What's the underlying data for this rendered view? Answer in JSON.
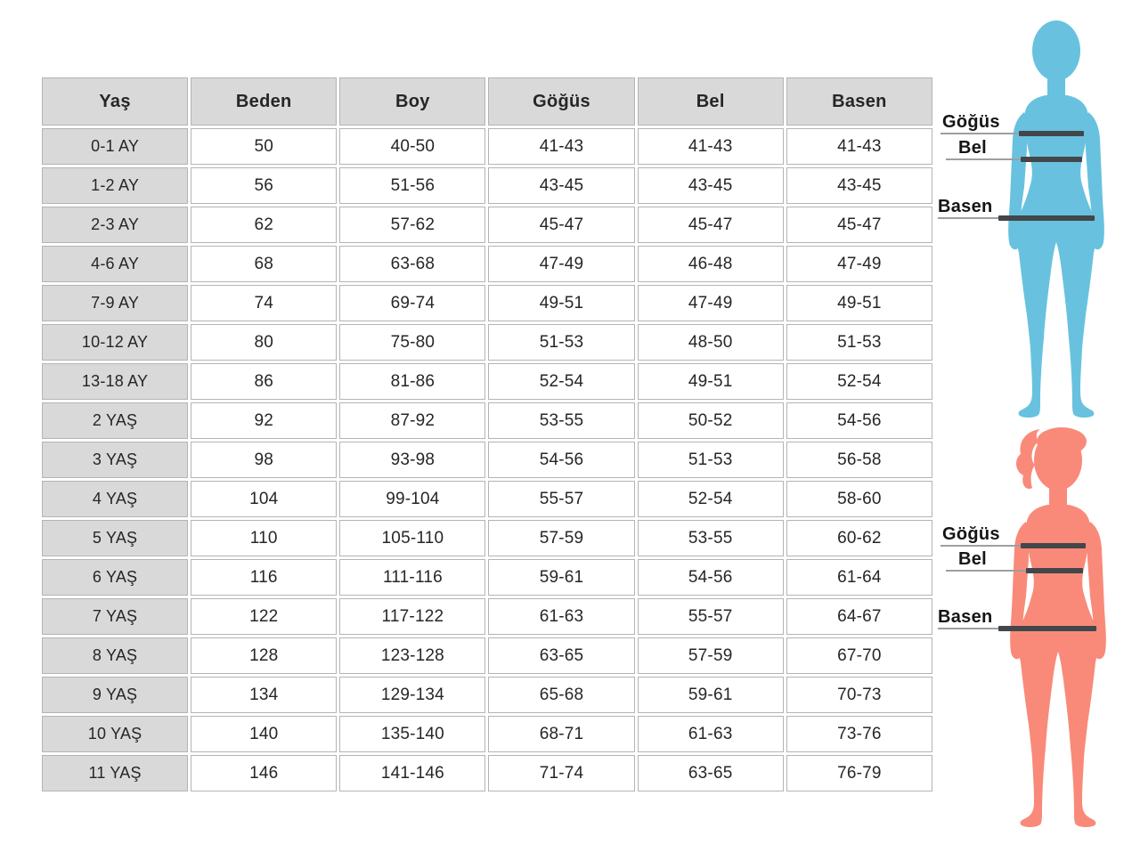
{
  "table": {
    "headers": [
      "Yaş",
      "Beden",
      "Boy",
      "Göğüs",
      "Bel",
      "Basen"
    ],
    "rows": [
      [
        "0-1 AY",
        "50",
        "40-50",
        "41-43",
        "41-43",
        "41-43"
      ],
      [
        "1-2 AY",
        "56",
        "51-56",
        "43-45",
        "43-45",
        "43-45"
      ],
      [
        "2-3 AY",
        "62",
        "57-62",
        "45-47",
        "45-47",
        "45-47"
      ],
      [
        "4-6 AY",
        "68",
        "63-68",
        "47-49",
        "46-48",
        "47-49"
      ],
      [
        "7-9 AY",
        "74",
        "69-74",
        "49-51",
        "47-49",
        "49-51"
      ],
      [
        "10-12 AY",
        "80",
        "75-80",
        "51-53",
        "48-50",
        "51-53"
      ],
      [
        "13-18 AY",
        "86",
        "81-86",
        "52-54",
        "49-51",
        "52-54"
      ],
      [
        "2 YAŞ",
        "92",
        "87-92",
        "53-55",
        "50-52",
        "54-56"
      ],
      [
        "3 YAŞ",
        "98",
        "93-98",
        "54-56",
        "51-53",
        "56-58"
      ],
      [
        "4 YAŞ",
        "104",
        "99-104",
        "55-57",
        "52-54",
        "58-60"
      ],
      [
        "5 YAŞ",
        "110",
        "105-110",
        "57-59",
        "53-55",
        "60-62"
      ],
      [
        "6 YAŞ",
        "116",
        "111-116",
        "59-61",
        "54-56",
        "61-64"
      ],
      [
        "7 YAŞ",
        "122",
        "117-122",
        "61-63",
        "55-57",
        "64-67"
      ],
      [
        "8 YAŞ",
        "128",
        "123-128",
        "63-65",
        "57-59",
        "67-70"
      ],
      [
        "9 YAŞ",
        "134",
        "129-134",
        "65-68",
        "59-61",
        "70-73"
      ],
      [
        "10 YAŞ",
        "140",
        "135-140",
        "68-71",
        "61-63",
        "73-76"
      ],
      [
        "11 YAŞ",
        "146",
        "141-146",
        "71-74",
        "63-65",
        "76-79"
      ]
    ]
  },
  "figures": {
    "top": {
      "labels": [
        "Göğüs",
        "Bel",
        "Basen"
      ]
    },
    "bottom": {
      "labels": [
        "Göğüs",
        "Bel",
        "Basen"
      ]
    }
  },
  "colors": {
    "header_bg": "#d9d9d9",
    "row_label_bg": "#d9d9d9",
    "cell_border": "#b4b4b4",
    "adult_silhouette": "#68c2df",
    "child_silhouette": "#f98a79",
    "measure_bar": "#43464a",
    "pointer_line": "#9b9fa1",
    "text": "#262626"
  },
  "chart_data": {
    "type": "table",
    "title": "",
    "columns": [
      "Yaş",
      "Beden",
      "Boy",
      "Göğüs",
      "Bel",
      "Basen"
    ],
    "rows": [
      [
        "0-1 AY",
        "50",
        "40-50",
        "41-43",
        "41-43",
        "41-43"
      ],
      [
        "1-2 AY",
        "56",
        "51-56",
        "43-45",
        "43-45",
        "43-45"
      ],
      [
        "2-3 AY",
        "62",
        "57-62",
        "45-47",
        "45-47",
        "45-47"
      ],
      [
        "4-6 AY",
        "68",
        "63-68",
        "47-49",
        "46-48",
        "47-49"
      ],
      [
        "7-9 AY",
        "74",
        "69-74",
        "49-51",
        "47-49",
        "49-51"
      ],
      [
        "10-12 AY",
        "80",
        "75-80",
        "51-53",
        "48-50",
        "51-53"
      ],
      [
        "13-18 AY",
        "86",
        "81-86",
        "52-54",
        "49-51",
        "52-54"
      ],
      [
        "2 YAŞ",
        "92",
        "87-92",
        "53-55",
        "50-52",
        "54-56"
      ],
      [
        "3 YAŞ",
        "98",
        "93-98",
        "54-56",
        "51-53",
        "56-58"
      ],
      [
        "4 YAŞ",
        "104",
        "99-104",
        "55-57",
        "52-54",
        "58-60"
      ],
      [
        "5 YAŞ",
        "110",
        "105-110",
        "57-59",
        "53-55",
        "60-62"
      ],
      [
        "6 YAŞ",
        "116",
        "111-116",
        "59-61",
        "54-56",
        "61-64"
      ],
      [
        "7 YAŞ",
        "122",
        "117-122",
        "61-63",
        "55-57",
        "64-67"
      ],
      [
        "8 YAŞ",
        "128",
        "123-128",
        "63-65",
        "57-59",
        "67-70"
      ],
      [
        "9 YAŞ",
        "134",
        "129-134",
        "65-68",
        "59-61",
        "70-73"
      ],
      [
        "10 YAŞ",
        "140",
        "135-140",
        "68-71",
        "61-63",
        "73-76"
      ],
      [
        "11 YAŞ",
        "146",
        "141-146",
        "71-74",
        "63-65",
        "76-79"
      ]
    ],
    "annotations": [
      "Göğüs",
      "Bel",
      "Basen"
    ]
  }
}
